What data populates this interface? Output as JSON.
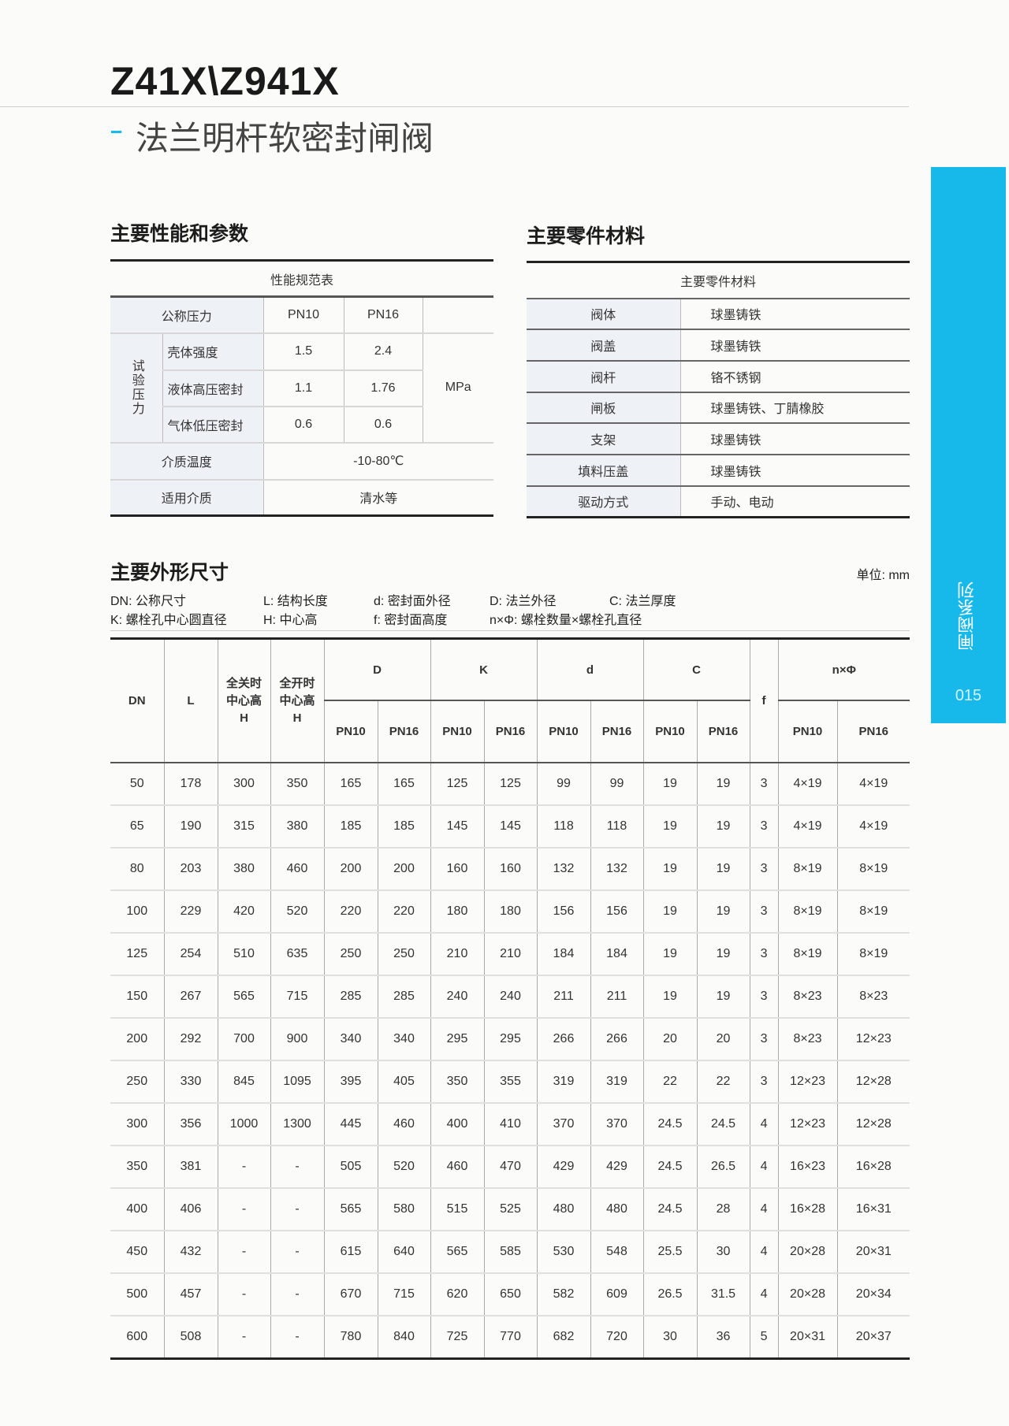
{
  "header": {
    "title": "Z41X\\Z941X",
    "subtitle_dash": "--",
    "subtitle": "法兰明杆软密封闸阀"
  },
  "side_tab": {
    "label": "闸阀系列",
    "page": "015",
    "color": "#17b8ea"
  },
  "performance": {
    "heading": "主要性能和参数",
    "table_title": "性能规范表",
    "nominal_pressure_label": "公称压力",
    "pn10": "PN10",
    "pn16": "PN16",
    "test_pressure_label": "试验压力",
    "rows": [
      {
        "label": "壳体强度",
        "pn10": "1.5",
        "pn16": "2.4"
      },
      {
        "label": "液体高压密封",
        "pn10": "1.1",
        "pn16": "1.76"
      },
      {
        "label": "气体低压密封",
        "pn10": "0.6",
        "pn16": "0.6"
      }
    ],
    "unit": "MPa",
    "temp_label": "介质温度",
    "temp_value": "-10-80℃",
    "media_label": "适用介质",
    "media_value": "清水等"
  },
  "materials": {
    "heading": "主要零件材料",
    "table_title": "主要零件材料",
    "rows": [
      {
        "part": "阀体",
        "material": "球墨铸铁"
      },
      {
        "part": "阀盖",
        "material": "球墨铸铁"
      },
      {
        "part": "阀杆",
        "material": "铬不锈钢"
      },
      {
        "part": "闸板",
        "material": "球墨铸铁、丁腈橡胶"
      },
      {
        "part": "支架",
        "material": "球墨铸铁"
      },
      {
        "part": "填料压盖",
        "material": "球墨铸铁"
      },
      {
        "part": "驱动方式",
        "material": "手动、电动"
      }
    ]
  },
  "dimensions": {
    "heading": "主要外形尺寸",
    "unit": "单位: mm",
    "legend": [
      "DN: 公称尺寸",
      "L: 结构长度",
      "d: 密封面外径",
      "D: 法兰外径",
      "C: 法兰厚度",
      "K: 螺栓孔中心圆直径",
      "H: 中心高",
      "f: 密封面高度",
      "n×Φ: 螺栓数量×螺栓孔直径"
    ],
    "headers": {
      "dn": "DN",
      "l": "L",
      "h_closed": "全关时中心高H",
      "h_open": "全开时中心高H",
      "groups": [
        "D",
        "K",
        "d",
        "C"
      ],
      "f": "f",
      "nphi": "n×Φ",
      "pn10": "PN10",
      "pn16": "PN16"
    },
    "rows": [
      [
        "50",
        "178",
        "300",
        "350",
        "165",
        "165",
        "125",
        "125",
        "99",
        "99",
        "19",
        "19",
        "3",
        "4×19",
        "4×19"
      ],
      [
        "65",
        "190",
        "315",
        "380",
        "185",
        "185",
        "145",
        "145",
        "118",
        "118",
        "19",
        "19",
        "3",
        "4×19",
        "4×19"
      ],
      [
        "80",
        "203",
        "380",
        "460",
        "200",
        "200",
        "160",
        "160",
        "132",
        "132",
        "19",
        "19",
        "3",
        "8×19",
        "8×19"
      ],
      [
        "100",
        "229",
        "420",
        "520",
        "220",
        "220",
        "180",
        "180",
        "156",
        "156",
        "19",
        "19",
        "3",
        "8×19",
        "8×19"
      ],
      [
        "125",
        "254",
        "510",
        "635",
        "250",
        "250",
        "210",
        "210",
        "184",
        "184",
        "19",
        "19",
        "3",
        "8×19",
        "8×19"
      ],
      [
        "150",
        "267",
        "565",
        "715",
        "285",
        "285",
        "240",
        "240",
        "211",
        "211",
        "19",
        "19",
        "3",
        "8×23",
        "8×23"
      ],
      [
        "200",
        "292",
        "700",
        "900",
        "340",
        "340",
        "295",
        "295",
        "266",
        "266",
        "20",
        "20",
        "3",
        "8×23",
        "12×23"
      ],
      [
        "250",
        "330",
        "845",
        "1095",
        "395",
        "405",
        "350",
        "355",
        "319",
        "319",
        "22",
        "22",
        "3",
        "12×23",
        "12×28"
      ],
      [
        "300",
        "356",
        "1000",
        "1300",
        "445",
        "460",
        "400",
        "410",
        "370",
        "370",
        "24.5",
        "24.5",
        "4",
        "12×23",
        "12×28"
      ],
      [
        "350",
        "381",
        "-",
        "-",
        "505",
        "520",
        "460",
        "470",
        "429",
        "429",
        "24.5",
        "26.5",
        "4",
        "16×23",
        "16×28"
      ],
      [
        "400",
        "406",
        "-",
        "-",
        "565",
        "580",
        "515",
        "525",
        "480",
        "480",
        "24.5",
        "28",
        "4",
        "16×28",
        "16×31"
      ],
      [
        "450",
        "432",
        "-",
        "-",
        "615",
        "640",
        "565",
        "585",
        "530",
        "548",
        "25.5",
        "30",
        "4",
        "20×28",
        "20×31"
      ],
      [
        "500",
        "457",
        "-",
        "-",
        "670",
        "715",
        "620",
        "650",
        "582",
        "609",
        "26.5",
        "31.5",
        "4",
        "20×28",
        "20×34"
      ],
      [
        "600",
        "508",
        "-",
        "-",
        "780",
        "840",
        "725",
        "770",
        "682",
        "720",
        "30",
        "36",
        "5",
        "20×31",
        "20×37"
      ]
    ]
  }
}
